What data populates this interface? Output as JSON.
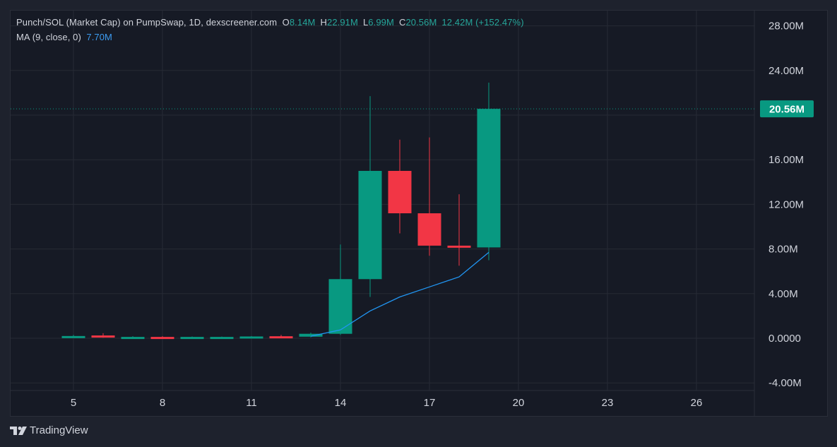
{
  "legend": {
    "title": "Punch/SOL (Market Cap) on PumpSwap, 1D, dexscreener.com",
    "open_label": "O",
    "open": "8.14M",
    "high_label": "H",
    "high": "22.91M",
    "low_label": "L",
    "low": "6.99M",
    "close_label": "C",
    "close": "20.56M",
    "change": "12.42M (+152.47%)",
    "ma_label": "MA (9, close, 0)",
    "ma_value": "7.70M"
  },
  "price_tag": "20.56M",
  "brand": "TradingView",
  "colors": {
    "up": "#089981",
    "down": "#f23645",
    "ma": "#2196f3",
    "grid": "#262a35",
    "background": "#161a25"
  },
  "chart_data": {
    "type": "candlestick",
    "title": "Punch/SOL (Market Cap) on PumpSwap, 1D, dexscreener.com",
    "x_ticks": [
      "5",
      "8",
      "11",
      "14",
      "17",
      "20",
      "23",
      "26"
    ],
    "y_ticks": [
      "28.00M",
      "24.00M",
      "16.00M",
      "12.00M",
      "8.00M",
      "4.00M",
      "0.0000",
      "-4.00M"
    ],
    "y_unit": "M",
    "ylim": [
      -4.0,
      28.0
    ],
    "xlim": [
      4,
      28
    ],
    "grid": true,
    "last_price": 20.56,
    "candles": [
      {
        "day": 5,
        "open": 0.1,
        "high": 0.3,
        "low": 0.05,
        "close": 0.2
      },
      {
        "day": 6,
        "open": 0.25,
        "high": 0.45,
        "low": 0.05,
        "close": 0.08
      },
      {
        "day": 7,
        "open": 0.05,
        "high": 0.18,
        "low": 0.02,
        "close": 0.12
      },
      {
        "day": 8,
        "open": 0.12,
        "high": 0.18,
        "low": 0.04,
        "close": 0.08
      },
      {
        "day": 9,
        "open": 0.08,
        "high": 0.16,
        "low": 0.03,
        "close": 0.12
      },
      {
        "day": 10,
        "open": 0.05,
        "high": 0.15,
        "low": 0.02,
        "close": 0.12
      },
      {
        "day": 11,
        "open": 0.06,
        "high": 0.2,
        "low": 0.03,
        "close": 0.16
      },
      {
        "day": 12,
        "open": 0.18,
        "high": 0.3,
        "low": 0.05,
        "close": 0.14
      },
      {
        "day": 13,
        "open": 0.14,
        "high": 0.5,
        "low": 0.08,
        "close": 0.4
      },
      {
        "day": 14,
        "open": 0.4,
        "high": 8.4,
        "low": 0.3,
        "close": 5.3
      },
      {
        "day": 15,
        "open": 5.3,
        "high": 21.7,
        "low": 3.7,
        "close": 15.0
      },
      {
        "day": 16,
        "open": 15.0,
        "high": 17.8,
        "low": 9.4,
        "close": 11.2
      },
      {
        "day": 17,
        "open": 11.2,
        "high": 18.0,
        "low": 7.4,
        "close": 8.3
      },
      {
        "day": 18,
        "open": 8.3,
        "high": 12.9,
        "low": 6.5,
        "close": 8.14
      },
      {
        "day": 19,
        "open": 8.14,
        "high": 22.91,
        "low": 6.99,
        "close": 20.56
      }
    ],
    "ma": {
      "name": "MA (9, close, 0)",
      "points": [
        {
          "day": 13,
          "value": 0.18
        },
        {
          "day": 14,
          "value": 0.75
        },
        {
          "day": 15,
          "value": 2.45
        },
        {
          "day": 16,
          "value": 3.7
        },
        {
          "day": 17,
          "value": 4.6
        },
        {
          "day": 18,
          "value": 5.5
        },
        {
          "day": 19,
          "value": 7.7
        }
      ]
    }
  }
}
